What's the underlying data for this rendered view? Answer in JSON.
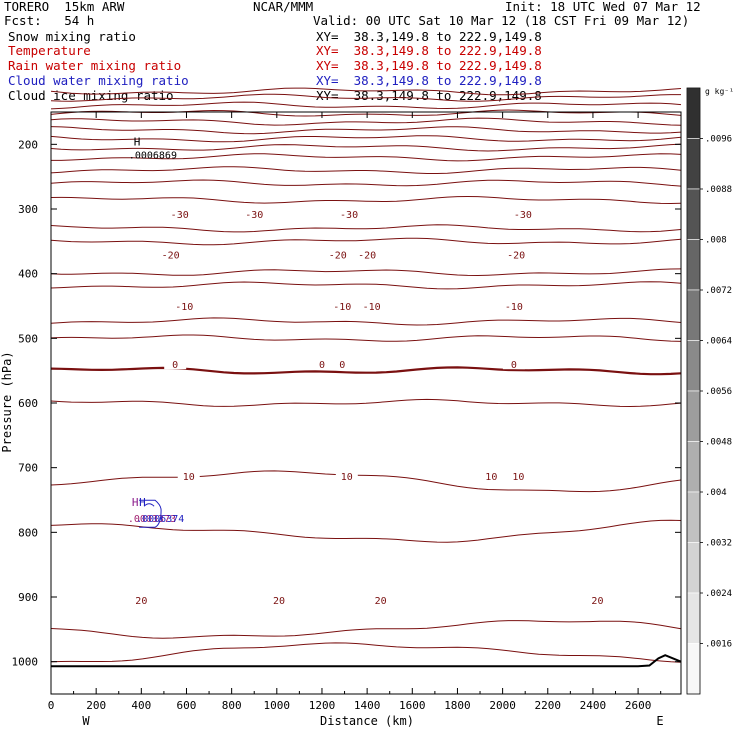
{
  "header": {
    "left_line1": "TORERO  15km ARW",
    "left_line2": "Fcst:   54 h",
    "center": "NCAR/MMM",
    "init": "Init: 18 UTC Wed 07 Mar 12",
    "valid": "Valid: 00 UTC Sat 10 Mar 12 (18 CST Fri 09 Mar 12)",
    "fields": [
      {
        "name": "Snow mixing ratio",
        "xy": "XY=  38.3,149.8 to 222.9,149.8",
        "color": "#000000"
      },
      {
        "name": "Temperature",
        "xy": "XY=  38.3,149.8 to 222.9,149.8",
        "color": "#c80000"
      },
      {
        "name": "Rain water mixing ratio",
        "xy": "XY=  38.3,149.8 to 222.9,149.8",
        "color": "#c80000"
      },
      {
        "name": "Cloud water mixing ratio",
        "xy": "XY=  38.3,149.8 to 222.9,149.8",
        "color": "#2020c0"
      },
      {
        "name": "Cloud ice mixing ratio",
        "xy": "XY=  38.3,149.8 to 222.9,149.8",
        "color": "#000000"
      }
    ]
  },
  "chart_data": {
    "type": "contour",
    "xlabel": "Distance (km)",
    "ylabel": "Pressure (hPa)",
    "xlim": [
      0,
      2790
    ],
    "ylim": [
      150,
      1050
    ],
    "xticks": [
      "0",
      "200",
      "400",
      "600",
      "800",
      "1000",
      "1200",
      "1400",
      "1600",
      "1800",
      "2000",
      "2200",
      "2400",
      "2600"
    ],
    "yticks": [
      "200",
      "300",
      "400",
      "500",
      "600",
      "700",
      "800",
      "900",
      "1000"
    ],
    "end_labels": {
      "left": "W",
      "right": "E"
    },
    "temperature_contours": [
      {
        "value": -30,
        "label": "-30",
        "pressure": 308,
        "label_x": [
          570,
          900,
          1320,
          2090
        ]
      },
      {
        "value": -20,
        "label": "-20",
        "pressure": 370,
        "label_x": [
          530,
          1270,
          1400,
          2060
        ]
      },
      {
        "value": -10,
        "label": "-10",
        "pressure": 450,
        "label_x": [
          590,
          1290,
          1420,
          2050
        ]
      },
      {
        "value": 0,
        "label": "0",
        "pressure": 540,
        "label_x": [
          550,
          1200,
          1290,
          2050
        ]
      },
      {
        "value": 10,
        "label": "10",
        "pressure": 713,
        "label_x": [
          610,
          1310,
          1950,
          2070
        ]
      },
      {
        "value": 20,
        "label": "20",
        "pressure": 905,
        "label_x": [
          400,
          1010,
          1460,
          2420
        ]
      }
    ],
    "contour_levels_hpa": [
      118,
      128,
      140,
      152,
      165,
      178,
      191,
      205,
      220,
      240,
      260,
      286,
      330,
      350,
      398,
      418,
      474,
      500,
      550,
      600,
      720,
      800,
      950,
      985
    ],
    "snow_max": {
      "symbol": "H",
      "value": ".0006869",
      "x": 380,
      "pressure": 205
    },
    "rain_max": {
      "symbol": "H",
      "value": ".0003373",
      "x": 420,
      "pressure": 772
    },
    "cloud_water_max": {
      "symbol": "H",
      "value": ".0006374",
      "x": 430,
      "pressure": 772
    },
    "colorbar": {
      "unit": "g kg⁻¹",
      "labels": [
        ".0096",
        ".0088",
        ".008",
        ".0072",
        ".0064",
        ".0056",
        ".0048",
        ".004",
        ".0032",
        ".0024",
        ".0016"
      ]
    }
  }
}
